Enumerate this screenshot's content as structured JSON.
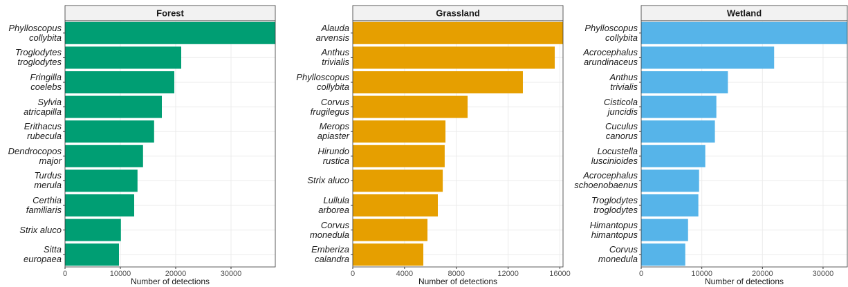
{
  "chart_data": [
    {
      "type": "bar",
      "orientation": "horizontal",
      "title": "Forest",
      "xlabel": "Number of detections",
      "color": "#009E73",
      "categories": [
        "Phylloscopus\ncollybita",
        "Troglodytes\ntroglodytes",
        "Fringilla\ncoelebs",
        "Sylvia\natricapilla",
        "Erithacus\nrubecula",
        "Dendrocopos\nmajor",
        "Turdus\nmerula",
        "Certhia\nfamiliaris",
        "Strix aluco",
        "Sitta\neuropaea"
      ],
      "values": [
        38000,
        21000,
        19750,
        17500,
        16100,
        14100,
        13100,
        12500,
        10100,
        9750
      ],
      "xlim": [
        0,
        38000
      ],
      "xticks": [
        0,
        10000,
        20000,
        30000
      ],
      "grid": true
    },
    {
      "type": "bar",
      "orientation": "horizontal",
      "title": "Grassland",
      "xlabel": "Number of detections",
      "color": "#E69F00",
      "categories": [
        "Alauda\narvensis",
        "Anthus\ntrivialis",
        "Phylloscopus\ncollybita",
        "Corvus\nfrugilegus",
        "Merops\napiaster",
        "Hirundo\nrustica",
        "Strix aluco",
        "Lullula\narborea",
        "Corvus\nmonedula",
        "Emberiza\ncalandra"
      ],
      "values": [
        16240,
        15600,
        13140,
        8870,
        7160,
        7100,
        6950,
        6570,
        5770,
        5450
      ],
      "xlim": [
        0,
        16240
      ],
      "xticks": [
        0,
        4000,
        8000,
        12000,
        16000
      ],
      "grid": true
    },
    {
      "type": "bar",
      "orientation": "horizontal",
      "title": "Wetland",
      "xlabel": "Number of detections",
      "color": "#56B4E9",
      "categories": [
        "Phylloscopus\ncollybita",
        "Acrocephalus\narundinaceus",
        "Anthus\ntrivialis",
        "Cisticola\njuncidis",
        "Cuculus\ncanorus",
        "Locustella\nluscinioides",
        "Acrocephalus\nschoenobaenus",
        "Troglodytes\ntroglodytes",
        "Himantopus\nhimantopus",
        "Corvus\nmonedula"
      ],
      "values": [
        34000,
        21930,
        14300,
        12400,
        12160,
        10570,
        9550,
        9430,
        7730,
        7270
      ],
      "xlim": [
        0,
        34000
      ],
      "xticks": [
        0,
        10000,
        20000,
        30000
      ],
      "grid": true
    }
  ]
}
